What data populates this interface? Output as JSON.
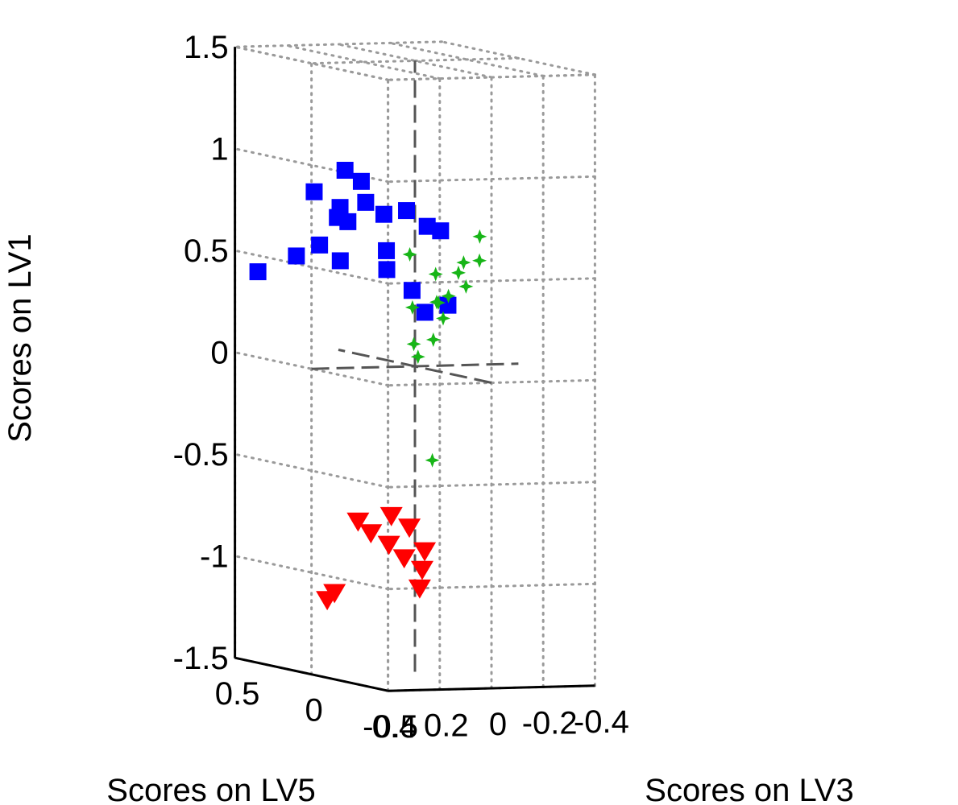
{
  "chart_data": {
    "type": "scatter",
    "projection": "3d",
    "ylabel_vertical": "Scores on LV1",
    "xlabel_left": "Scores on LV5",
    "xlabel_right": "Scores on LV3",
    "lv1_ticks": [
      "1.5",
      "1",
      "0.5",
      "0",
      "-0.5",
      "-1",
      "-1.5"
    ],
    "lv5_ticks": [
      "0.5",
      "0",
      "-0.5"
    ],
    "lv3_ticks": [
      "0.4",
      "0.2",
      "0",
      "-0.2",
      "-0.4"
    ],
    "lv1_range": [
      -1.5,
      1.5
    ],
    "lv5_range": [
      -0.5,
      0.5
    ],
    "lv3_range": [
      -0.4,
      0.4
    ],
    "grid": true,
    "legend": "none",
    "series": [
      {
        "marker": "square",
        "color": "#0000ff",
        "points": [
          {
            "lv3": 0.26,
            "lv5": 0.05,
            "lv1": 0.78
          },
          {
            "lv3": 0.2,
            "lv5": 0.1,
            "lv1": 0.7
          },
          {
            "lv3": 0.3,
            "lv5": 0.0,
            "lv1": 0.74
          },
          {
            "lv3": 0.22,
            "lv5": -0.05,
            "lv1": 0.82
          },
          {
            "lv3": 0.16,
            "lv5": 0.08,
            "lv1": 0.9
          },
          {
            "lv3": 0.12,
            "lv5": 0.0,
            "lv1": 0.75
          },
          {
            "lv3": 0.08,
            "lv5": -0.08,
            "lv1": 0.78
          },
          {
            "lv3": 0.0,
            "lv5": -0.08,
            "lv1": 0.7
          },
          {
            "lv3": 0.14,
            "lv5": -0.05,
            "lv1": 0.58
          },
          {
            "lv3": 0.28,
            "lv5": 0.15,
            "lv1": 0.58
          },
          {
            "lv3": 0.34,
            "lv5": 0.2,
            "lv1": 0.52
          },
          {
            "lv3": 0.2,
            "lv5": 0.15,
            "lv1": 0.5
          },
          {
            "lv3": 0.1,
            "lv5": -0.15,
            "lv1": 0.4
          },
          {
            "lv3": 0.08,
            "lv5": -0.2,
            "lv1": 0.3
          },
          {
            "lv3": 0.4,
            "lv5": 0.35,
            "lv1": 0.42
          },
          {
            "lv3": 0.3,
            "lv5": -0.05,
            "lv1": 0.98
          },
          {
            "lv3": 0.05,
            "lv5": -0.3,
            "lv1": 0.35
          },
          {
            "lv3": 0.18,
            "lv5": -0.12,
            "lv1": 0.5
          },
          {
            "lv3": -0.04,
            "lv5": -0.1,
            "lv1": 0.68
          },
          {
            "lv3": 0.36,
            "lv5": 0.05,
            "lv1": 0.86
          }
        ]
      },
      {
        "marker": "star",
        "color": "#17b517",
        "points": [
          {
            "lv3": -0.1,
            "lv5": -0.05,
            "lv1": 0.35
          },
          {
            "lv3": -0.05,
            "lv5": -0.1,
            "lv1": 0.25
          },
          {
            "lv3": -0.2,
            "lv5": 0.02,
            "lv1": 0.5
          },
          {
            "lv3": -0.28,
            "lv5": 0.05,
            "lv1": 0.62
          },
          {
            "lv3": 0.0,
            "lv5": -0.12,
            "lv1": 0.15
          },
          {
            "lv3": -0.08,
            "lv5": 0.0,
            "lv1": 0.45
          },
          {
            "lv3": -0.15,
            "lv5": -0.08,
            "lv1": 0.4
          },
          {
            "lv3": -0.02,
            "lv5": 0.05,
            "lv1": 0.28
          },
          {
            "lv3": 0.0,
            "lv5": -0.02,
            "lv1": 0.05
          },
          {
            "lv3": -0.22,
            "lv5": -0.05,
            "lv1": 0.52
          },
          {
            "lv3": -0.12,
            "lv5": 0.05,
            "lv1": 0.3
          },
          {
            "lv3": 0.04,
            "lv5": -0.06,
            "lv1": 0.12
          },
          {
            "lv3": -0.06,
            "lv5": -0.04,
            "lv1": 0.32
          },
          {
            "lv3": -0.18,
            "lv5": 0.02,
            "lv1": 0.45
          },
          {
            "lv3": 0.02,
            "lv5": 0.0,
            "lv1": 0.55
          },
          {
            "lv3": 0.14,
            "lv5": -0.35,
            "lv1": -0.4
          }
        ]
      },
      {
        "marker": "triangle-down",
        "color": "#ff0000",
        "points": [
          {
            "lv3": 0.18,
            "lv5": -0.15,
            "lv1": -0.7
          },
          {
            "lv3": 0.14,
            "lv5": -0.2,
            "lv1": -0.75
          },
          {
            "lv3": 0.16,
            "lv5": -0.1,
            "lv1": -0.85
          },
          {
            "lv3": 0.12,
            "lv5": -0.25,
            "lv1": -0.95
          },
          {
            "lv3": 0.2,
            "lv5": -0.05,
            "lv1": -0.8
          },
          {
            "lv3": 0.1,
            "lv5": -0.2,
            "lv1": -1.05
          },
          {
            "lv3": 0.22,
            "lv5": 0.0,
            "lv1": -0.75
          },
          {
            "lv3": 0.14,
            "lv5": -0.3,
            "lv1": -0.85
          },
          {
            "lv3": 0.16,
            "lv5": -0.2,
            "lv1": -0.9
          },
          {
            "lv3": 0.28,
            "lv5": 0.1,
            "lv1": -1.15
          },
          {
            "lv3": 0.24,
            "lv5": 0.12,
            "lv1": -1.12
          }
        ]
      }
    ]
  }
}
